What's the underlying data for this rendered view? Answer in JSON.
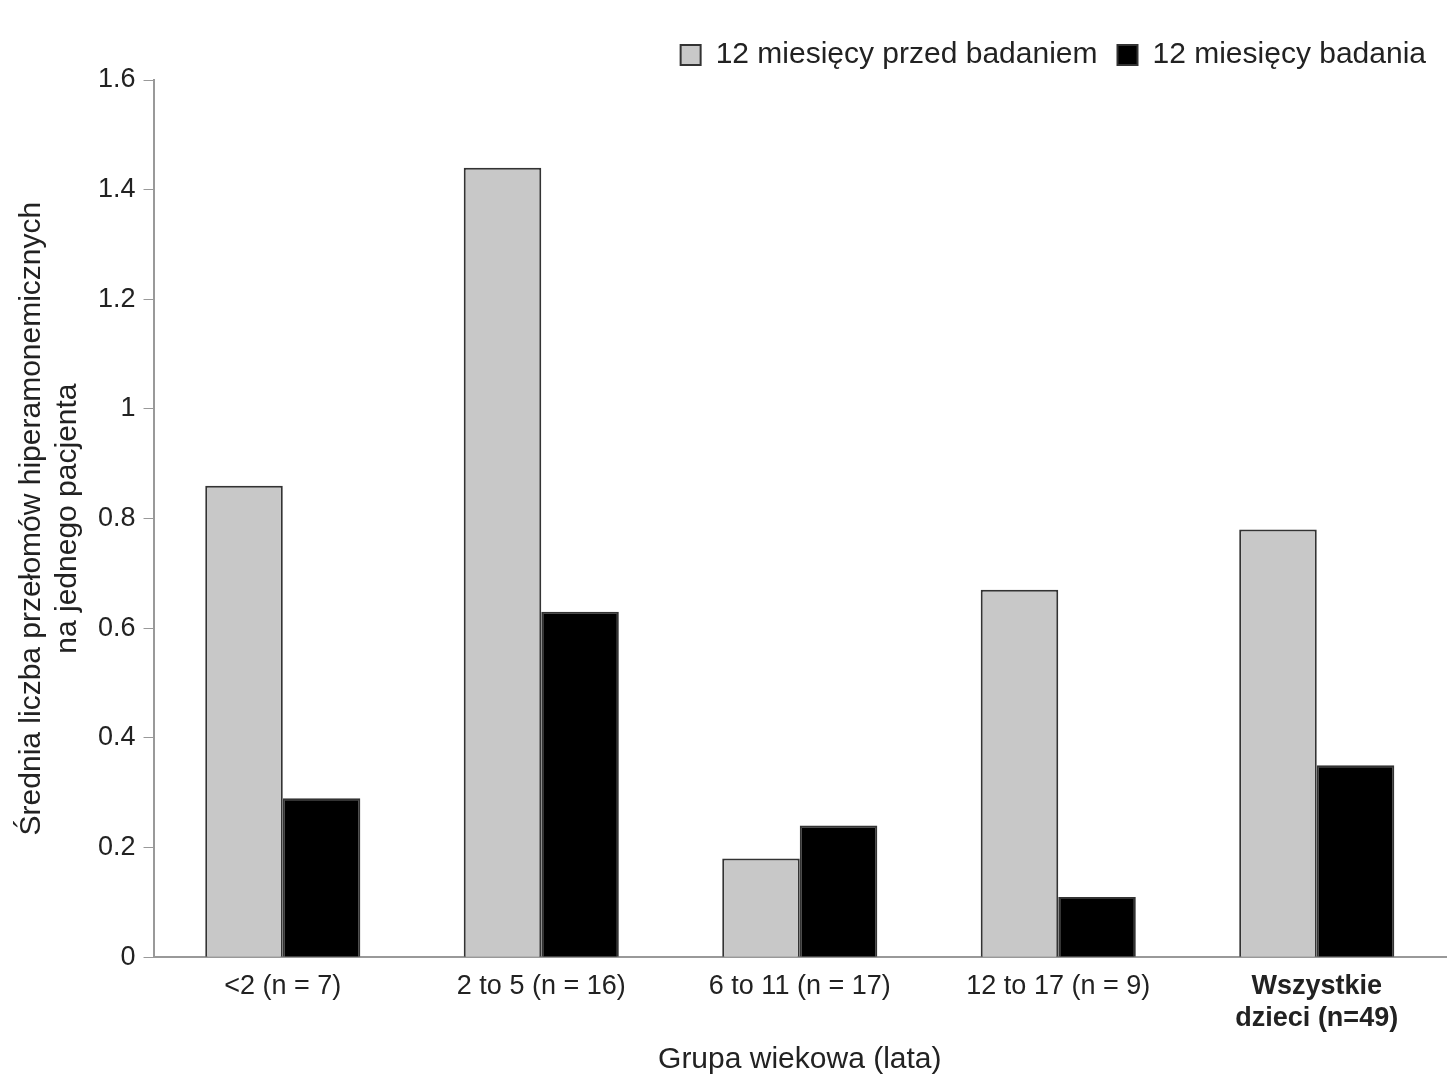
{
  "chart_data": {
    "type": "bar",
    "categories": [
      "<2 (n = 7)",
      "2 to 5 (n = 16)",
      "6 to 11 (n = 17)",
      "12 to 17 (n = 9)",
      "Wszystkie\ndzieci (n=49)"
    ],
    "series": [
      {
        "name": "12 miesięcy przed badaniem",
        "color": "#c8c8c8",
        "values": [
          0.86,
          1.44,
          0.18,
          0.67,
          0.78
        ]
      },
      {
        "name": "12 miesięcy badania",
        "color": "#000000",
        "values": [
          0.29,
          0.63,
          0.24,
          0.11,
          0.35
        ]
      }
    ],
    "xlabel": "Grupa wiekowa (lata)",
    "ylabel": "Średnia liczba przełomów hiperamonemicznych\nna jednego pacjenta",
    "ylim": [
      0,
      1.6
    ],
    "yticks": [
      0,
      0.2,
      0.4,
      0.6,
      0.8,
      1,
      1.2,
      1.4,
      1.6
    ],
    "grid": false,
    "legend": "top right"
  }
}
